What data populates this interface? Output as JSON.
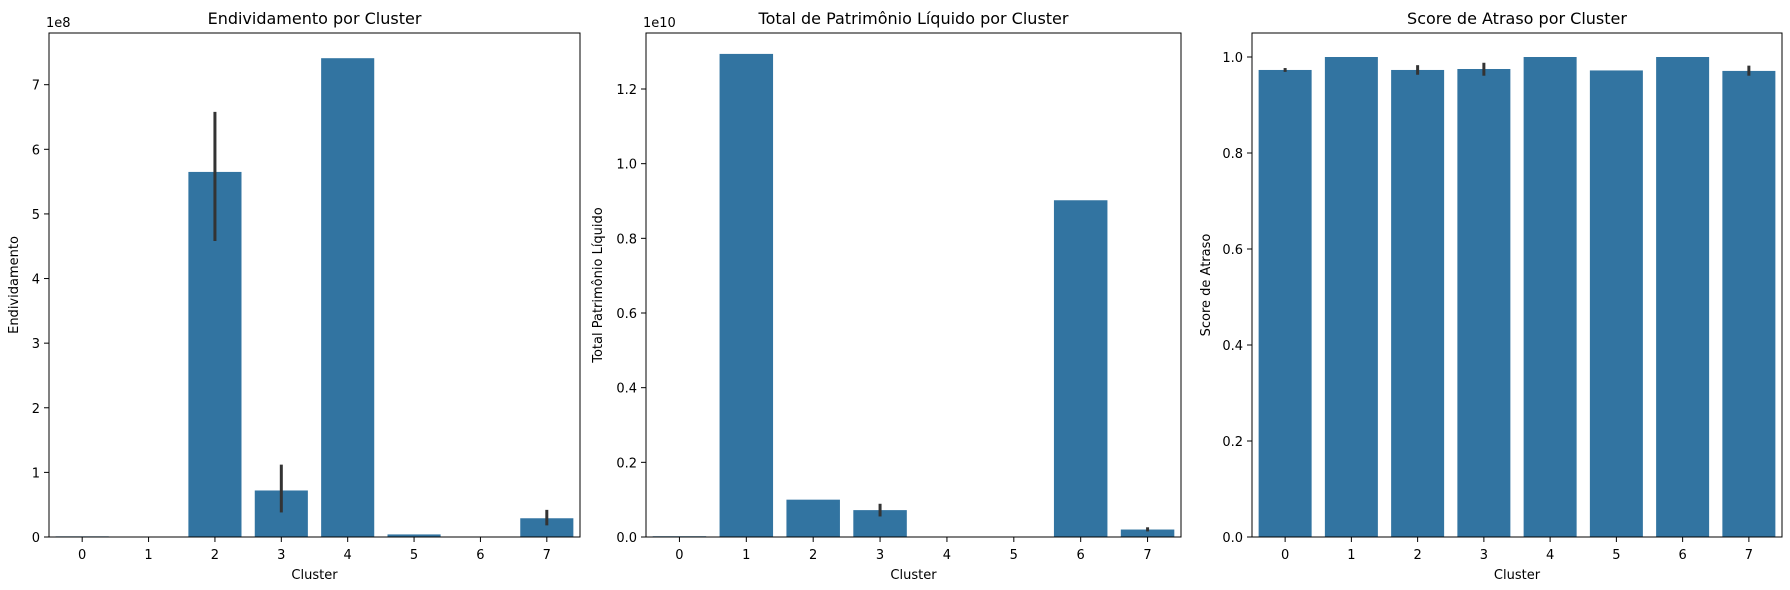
{
  "chart_data": [
    {
      "type": "bar",
      "title": "Endividamento por Cluster",
      "xlabel": "Cluster",
      "ylabel": "Endividamento",
      "offset_label": "1e8",
      "scale": 100000000,
      "categories": [
        "0",
        "1",
        "2",
        "3",
        "4",
        "5",
        "6",
        "7"
      ],
      "values": [
        1000000,
        0,
        565000000,
        72000000,
        741000000,
        4000000,
        0,
        29000000
      ],
      "error_bars": [
        null,
        null,
        [
          458000000,
          658000000
        ],
        [
          38000000,
          112000000
        ],
        null,
        null,
        null,
        [
          18000000,
          42000000
        ]
      ],
      "ylim": [
        0,
        780000000
      ],
      "yticks": [
        0,
        1,
        2,
        3,
        4,
        5,
        6,
        7
      ],
      "ytick_labels": [
        "0",
        "1",
        "2",
        "3",
        "4",
        "5",
        "6",
        "7"
      ],
      "bar_color": "#3274a1",
      "error_color": "#333333",
      "grid": false,
      "legend": "none"
    },
    {
      "type": "bar",
      "title": "Total de Patrimônio Líquido por Cluster",
      "xlabel": "Cluster",
      "ylabel": "Total Patrimônio Líquido",
      "offset_label": "1e10",
      "scale": 10000000000,
      "categories": [
        "0",
        "1",
        "2",
        "3",
        "4",
        "5",
        "6",
        "7"
      ],
      "values": [
        20000000,
        12940000000,
        1000000000,
        720000000,
        0,
        0,
        9020000000,
        200000000
      ],
      "error_bars": [
        null,
        null,
        null,
        [
          550000000,
          890000000
        ],
        null,
        null,
        null,
        [
          150000000,
          260000000
        ]
      ],
      "ylim": [
        0,
        13500000000
      ],
      "yticks": [
        0,
        0.2,
        0.4,
        0.6,
        0.8,
        1.0,
        1.2
      ],
      "ytick_labels": [
        "0.0",
        "0.2",
        "0.4",
        "0.6",
        "0.8",
        "1.0",
        "1.2"
      ],
      "bar_color": "#3274a1",
      "error_color": "#333333",
      "grid": false,
      "legend": "none"
    },
    {
      "type": "bar",
      "title": "Score de Atraso por Cluster",
      "xlabel": "Cluster",
      "ylabel": "Score de Atraso",
      "offset_label": "",
      "scale": 1,
      "categories": [
        "0",
        "1",
        "2",
        "3",
        "4",
        "5",
        "6",
        "7"
      ],
      "values": [
        0.973,
        1.0,
        0.973,
        0.975,
        1.0,
        0.972,
        1.0,
        0.971
      ],
      "error_bars": [
        [
          0.969,
          0.977
        ],
        null,
        [
          0.963,
          0.983
        ],
        [
          0.961,
          0.988
        ],
        null,
        null,
        null,
        [
          0.961,
          0.982
        ]
      ],
      "ylim": [
        0,
        1.05
      ],
      "yticks": [
        0,
        0.2,
        0.4,
        0.6,
        0.8,
        1.0
      ],
      "ytick_labels": [
        "0.0",
        "0.2",
        "0.4",
        "0.6",
        "0.8",
        "1.0"
      ],
      "bar_color": "#3274a1",
      "error_color": "#333333",
      "grid": false,
      "legend": "none"
    }
  ]
}
